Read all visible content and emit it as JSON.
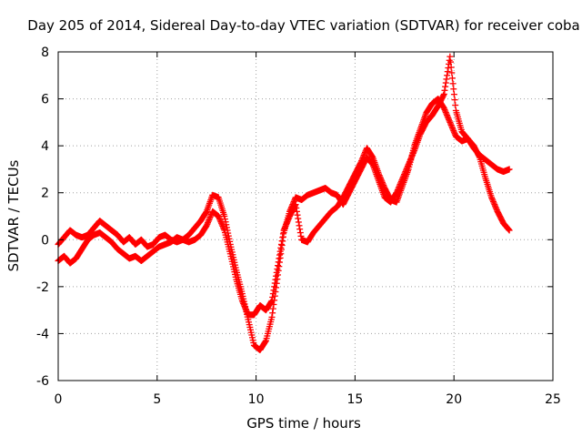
{
  "chart_data": {
    "type": "scatter",
    "title": "Day 205 of 2014, Sidereal Day-to-day VTEC variation (SDTVAR) for receiver coba",
    "xlabel": "GPS time / hours",
    "ylabel": "SDTVAR / TECUs",
    "xlim": [
      0,
      25
    ],
    "ylim": [
      -6,
      8
    ],
    "xticks": [
      "0",
      "5",
      "10",
      "15",
      "20",
      "25"
    ],
    "yticks": [
      "-6",
      "-4",
      "-2",
      "0",
      "2",
      "4",
      "6",
      "8"
    ],
    "grid": true,
    "marker": "plus",
    "color": "#ff0000",
    "series": [
      {
        "x": [
          0,
          0.3,
          0.6,
          0.9,
          1.2,
          1.5,
          1.8,
          2.1,
          2.4,
          2.7,
          3.0,
          3.3,
          3.6,
          3.9,
          4.2,
          4.5,
          4.8,
          5.1,
          5.4,
          5.7,
          6.0,
          6.3,
          6.6,
          6.9,
          7.2,
          7.5,
          7.8,
          8.1,
          8.4,
          8.7,
          9.0,
          9.3,
          9.6,
          9.9,
          10.2,
          10.5,
          10.8,
          11.1,
          11.4,
          11.7,
          12.0,
          12.3,
          12.6,
          12.9,
          13.2,
          13.5,
          13.8,
          14.1,
          14.4,
          14.7,
          15.0,
          15.3,
          15.6,
          15.9,
          16.2,
          16.5,
          16.8,
          17.1,
          17.4,
          17.7,
          18.0,
          18.3,
          18.6,
          18.9,
          19.2,
          19.5,
          19.8,
          20.1,
          20.4,
          20.7,
          21.0,
          21.3,
          21.6,
          21.9,
          22.2,
          22.5,
          22.8
        ],
        "y": [
          -0.2,
          0.1,
          0.4,
          0.2,
          0.1,
          0.2,
          0.5,
          0.8,
          0.6,
          0.4,
          0.2,
          -0.1,
          0.1,
          -0.2,
          0.0,
          -0.3,
          -0.2,
          0.1,
          0.2,
          0.0,
          -0.1,
          0.0,
          0.2,
          0.5,
          0.8,
          1.2,
          1.9,
          1.8,
          1.0,
          -0.2,
          -1.3,
          -2.3,
          -3.4,
          -4.5,
          -4.7,
          -4.3,
          -3.3,
          -1.5,
          0.3,
          1.2,
          1.8,
          1.7,
          1.9,
          2.0,
          2.1,
          2.2,
          2.0,
          1.9,
          1.5,
          2.0,
          2.5,
          3.0,
          3.5,
          3.2,
          2.5,
          1.8,
          1.6,
          2.0,
          2.6,
          3.2,
          3.8,
          4.5,
          5.0,
          5.3,
          5.7,
          6.2,
          7.8,
          5.5,
          4.6,
          4.3,
          4.0,
          3.5,
          2.6,
          1.8,
          1.2,
          0.7,
          0.4
        ]
      },
      {
        "x": [
          0,
          0.3,
          0.6,
          0.9,
          1.2,
          1.5,
          1.8,
          2.1,
          2.4,
          2.7,
          3.0,
          3.3,
          3.6,
          3.9,
          4.2,
          4.5,
          4.8,
          5.1,
          5.4,
          5.7,
          6.0,
          6.3,
          6.6,
          6.9,
          7.2,
          7.5,
          7.8,
          8.1,
          8.4,
          8.7,
          9.0,
          9.3,
          9.6,
          9.9,
          10.2,
          10.5,
          10.8,
          11.1,
          11.4,
          11.7,
          12.0,
          12.3,
          12.6,
          12.9,
          13.2,
          13.5,
          13.8,
          14.1,
          14.4,
          14.7,
          15.0,
          15.3,
          15.6,
          15.9,
          16.2,
          16.5,
          16.8,
          17.1,
          17.4,
          17.7,
          18.0,
          18.3,
          18.6,
          18.9,
          19.2,
          19.5,
          19.8,
          20.1,
          20.4,
          20.7,
          21.0,
          21.3,
          21.6,
          21.9,
          22.2,
          22.5,
          22.8
        ],
        "y": [
          -0.9,
          -0.7,
          -1.0,
          -0.8,
          -0.4,
          0.0,
          0.2,
          0.3,
          0.1,
          -0.1,
          -0.4,
          -0.6,
          -0.8,
          -0.7,
          -0.9,
          -0.7,
          -0.5,
          -0.3,
          -0.2,
          -0.1,
          0.1,
          0.0,
          -0.1,
          0.0,
          0.2,
          0.6,
          1.2,
          1.0,
          0.4,
          -0.6,
          -1.7,
          -2.6,
          -3.2,
          -3.2,
          -2.8,
          -3.0,
          -2.6,
          -1.1,
          0.4,
          1.0,
          1.5,
          0.0,
          -0.1,
          0.3,
          0.6,
          0.9,
          1.2,
          1.4,
          1.8,
          2.3,
          2.8,
          3.3,
          3.9,
          3.5,
          2.8,
          2.2,
          1.7,
          1.6,
          2.3,
          3.0,
          4.0,
          4.7,
          5.4,
          5.8,
          6.0,
          5.6,
          5.0,
          4.4,
          4.2,
          4.3,
          3.9,
          3.6,
          3.4,
          3.2,
          3.0,
          2.9,
          3.0
        ]
      }
    ]
  }
}
